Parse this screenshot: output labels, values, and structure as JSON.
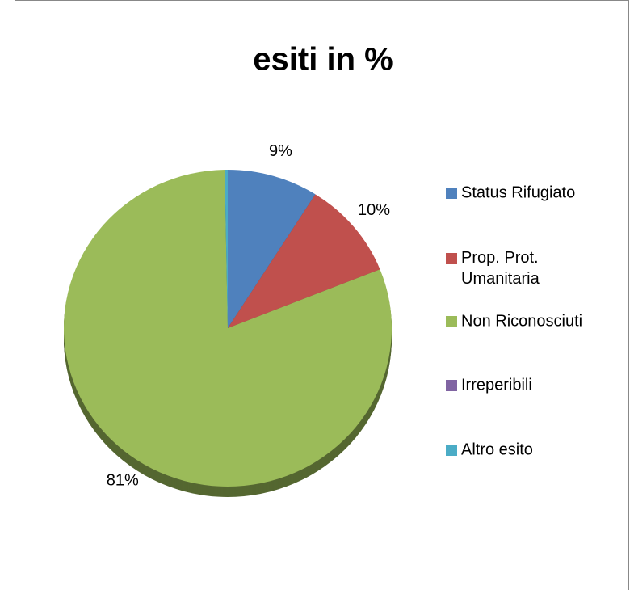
{
  "chart_data": {
    "type": "pie",
    "title": "esiti in %",
    "categories": [
      "Status Rifugiato",
      "Prop. Prot. Umanitaria",
      "Non Riconosciuti",
      "Irreperibili",
      "Altro esito"
    ],
    "values": [
      9,
      10,
      81,
      0,
      0.3
    ],
    "value_labels": [
      "9%",
      "10%",
      "81%",
      null,
      null
    ],
    "colors": [
      "#4f81bd",
      "#c0504d",
      "#9bbb59",
      "#8064a2",
      "#4bacc6"
    ]
  }
}
